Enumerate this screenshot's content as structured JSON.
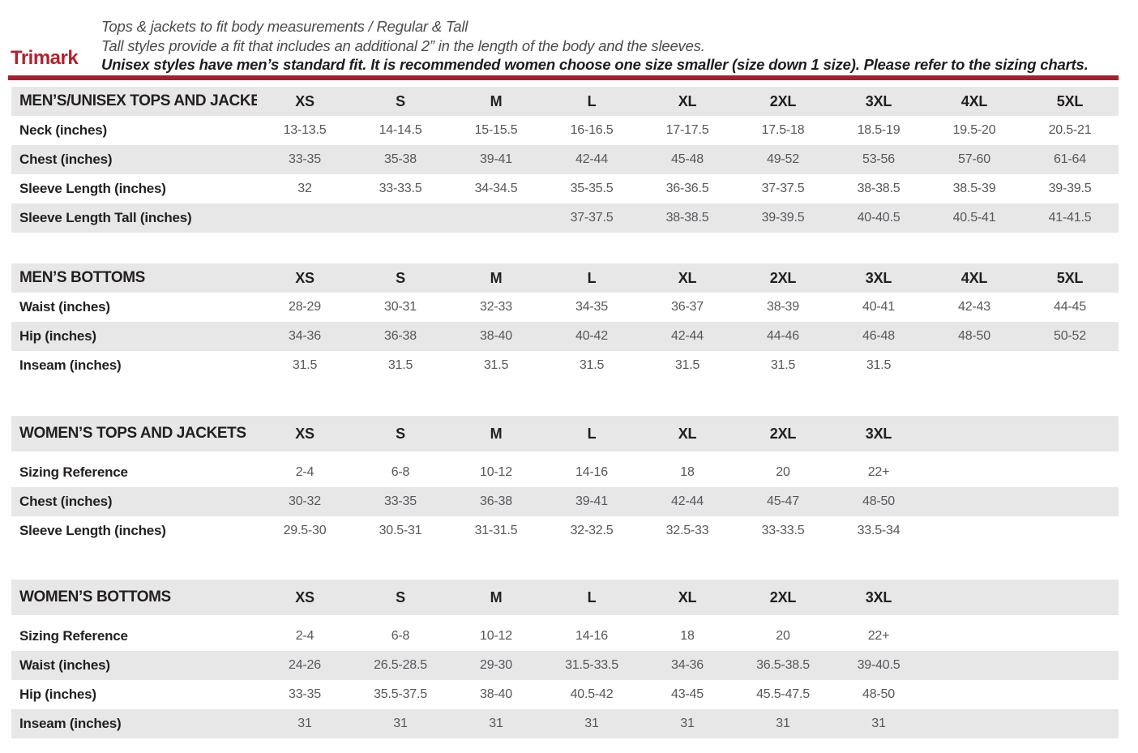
{
  "brand": {
    "logo_text": "Trimark"
  },
  "intro": {
    "line1": "Tops & jackets to fit body measurements / Regular & Tall",
    "line2": "Tall styles provide a fit that includes an additional 2” in the length of the body and the sleeves.",
    "line3": "Unisex styles have men’s standard fit. It is recommended women choose one size smaller (size down 1 size).  Please refer to the sizing charts."
  },
  "colors": {
    "accent_red": "#a91e2b",
    "logo_red": "#b6202c",
    "band_gray": "#e7e7e8",
    "label_text": "#231f20",
    "value_text": "#56575b"
  },
  "tables": [
    {
      "title": "MEN’S/UNISEX TOPS AND JACKETS",
      "columns": [
        "XS",
        "S",
        "M",
        "L",
        "XL",
        "2XL",
        "3XL",
        "4XL",
        "5XL"
      ],
      "rows": [
        {
          "label": "Neck (inches)",
          "values": [
            "13-13.5",
            "14-14.5",
            "15-15.5",
            "16-16.5",
            "17-17.5",
            "17.5-18",
            "18.5-19",
            "19.5-20",
            "20.5-21"
          ]
        },
        {
          "label": "Chest (inches)",
          "values": [
            "33-35",
            "35-38",
            "39-41",
            "42-44",
            "45-48",
            "49-52",
            "53-56",
            "57-60",
            "61-64"
          ]
        },
        {
          "label": "Sleeve Length (inches)",
          "values": [
            "32",
            "33-33.5",
            "34-34.5",
            "35-35.5",
            "36-36.5",
            "37-37.5",
            "38-38.5",
            "38.5-39",
            "39-39.5"
          ]
        },
        {
          "label": "Sleeve Length Tall (inches)",
          "values": [
            "",
            "",
            "",
            "37-37.5",
            "38-38.5",
            "39-39.5",
            "40-40.5",
            "40.5-41",
            "41-41.5"
          ]
        }
      ]
    },
    {
      "title": "MEN’S BOTTOMS",
      "columns": [
        "XS",
        "S",
        "M",
        "L",
        "XL",
        "2XL",
        "3XL",
        "4XL",
        "5XL"
      ],
      "rows": [
        {
          "label": "Waist (inches)",
          "values": [
            "28-29",
            "30-31",
            "32-33",
            "34-35",
            "36-37",
            "38-39",
            "40-41",
            "42-43",
            "44-45"
          ]
        },
        {
          "label": "Hip (inches)",
          "values": [
            "34-36",
            "36-38",
            "38-40",
            "40-42",
            "42-44",
            "44-46",
            "46-48",
            "48-50",
            "50-52"
          ]
        },
        {
          "label": "Inseam (inches)",
          "values": [
            "31.5",
            "31.5",
            "31.5",
            "31.5",
            "31.5",
            "31.5",
            "31.5",
            "",
            ""
          ]
        }
      ]
    },
    {
      "title": "WOMEN’S TOPS AND JACKETS",
      "columns": [
        "XS",
        "S",
        "M",
        "L",
        "XL",
        "2XL",
        "3XL"
      ],
      "rows": [
        {
          "label": "Sizing Reference",
          "values": [
            "2-4",
            "6-8",
            "10-12",
            "14-16",
            "18",
            "20",
            "22+"
          ]
        },
        {
          "label": "Chest (inches)",
          "values": [
            "30-32",
            "33-35",
            "36-38",
            "39-41",
            "42-44",
            "45-47",
            "48-50"
          ]
        },
        {
          "label": "Sleeve Length (inches)",
          "values": [
            "29.5-30",
            "30.5-31",
            "31-31.5",
            "32-32.5",
            "32.5-33",
            "33-33.5",
            "33.5-34"
          ]
        }
      ]
    },
    {
      "title": "WOMEN’S BOTTOMS",
      "columns": [
        "XS",
        "S",
        "M",
        "L",
        "XL",
        "2XL",
        "3XL"
      ],
      "rows": [
        {
          "label": "Sizing Reference",
          "values": [
            "2-4",
            "6-8",
            "10-12",
            "14-16",
            "18",
            "20",
            "22+"
          ]
        },
        {
          "label": "Waist (inches)",
          "values": [
            "24-26",
            "26.5-28.5",
            "29-30",
            "31.5-33.5",
            "34-36",
            "36.5-38.5",
            "39-40.5"
          ]
        },
        {
          "label": "Hip (inches)",
          "values": [
            "33-35",
            "35.5-37.5",
            "38-40",
            "40.5-42",
            "43-45",
            "45.5-47.5",
            "48-50"
          ]
        },
        {
          "label": "Inseam (inches)",
          "values": [
            "31",
            "31",
            "31",
            "31",
            "31",
            "31",
            "31"
          ]
        }
      ]
    }
  ]
}
